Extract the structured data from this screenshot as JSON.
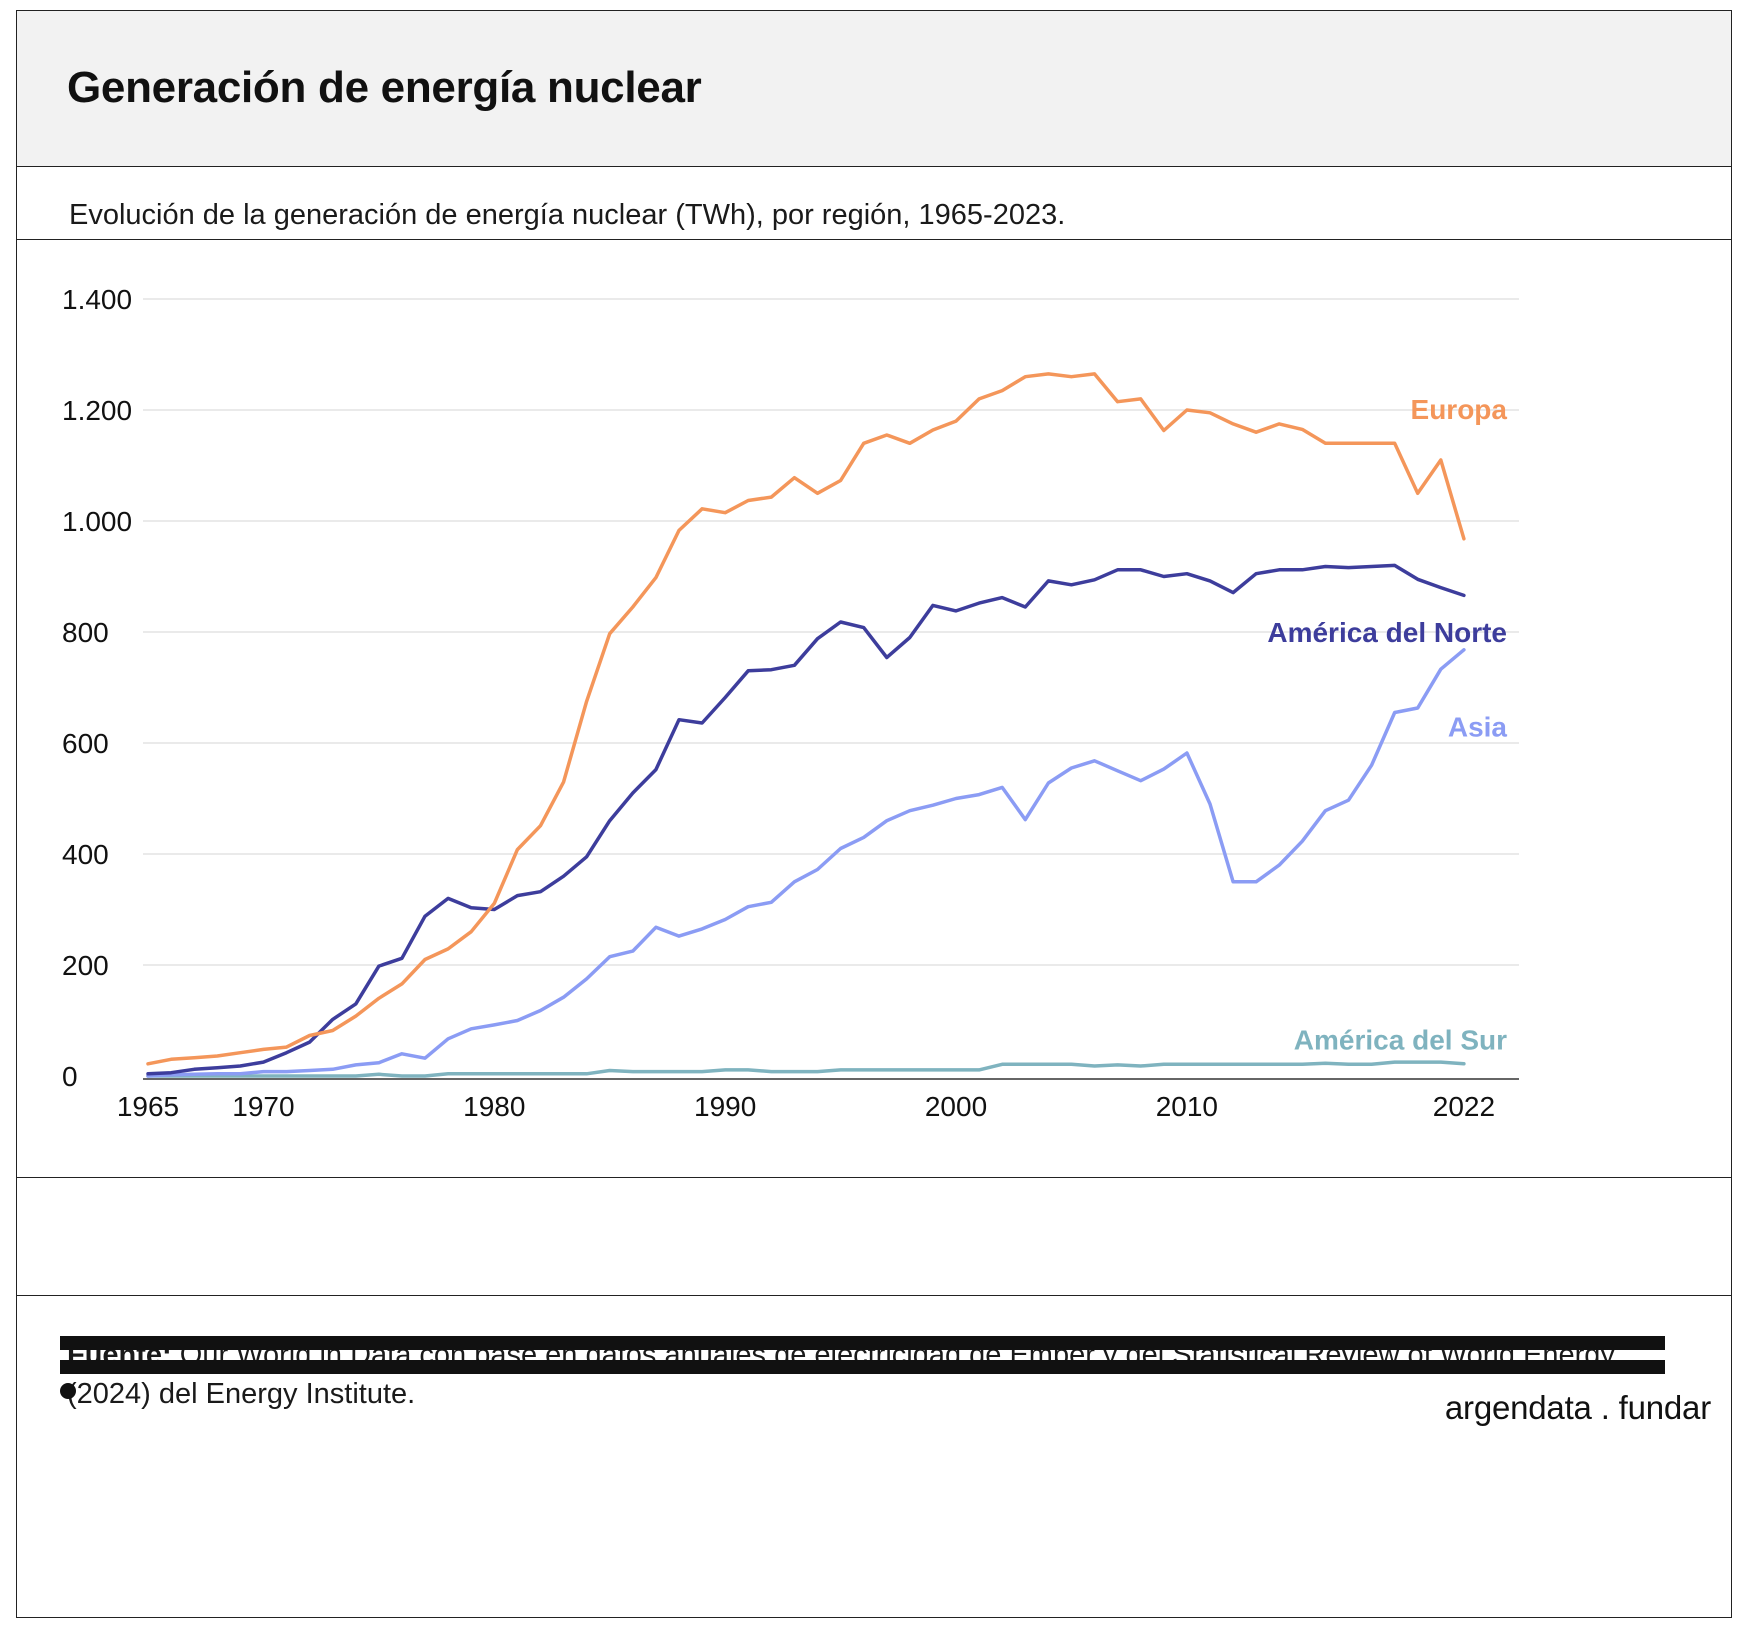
{
  "header": {
    "title": "Generación de energía nuclear",
    "subtitle": "Evolución de la generación de energía nuclear (TWh), por región, 1965-2023."
  },
  "footer": {
    "source_label": "Fuente:",
    "source_text": " Our World in Data con base en datos anuales de electricidad de Ember y del Statistical Review of World Energy (2024) del Energy Institute.",
    "logo_left": "argendata",
    "logo_dot": ".",
    "logo_right": "fundar"
  },
  "chart_data": {
    "type": "line",
    "title": "",
    "xlabel": "",
    "ylabel": "",
    "xlim": [
      1965,
      2023
    ],
    "ylim": [
      0,
      1400
    ],
    "x_ticks": [
      1965,
      1970,
      1980,
      1990,
      2000,
      2010,
      2022
    ],
    "y_ticks": [
      0,
      200,
      400,
      600,
      800,
      1000,
      1200,
      1400
    ],
    "y_tick_labels": [
      "0",
      "200",
      "400",
      "600",
      "800",
      "1.000",
      "1.200",
      "1.400"
    ],
    "grid": true,
    "legend": "inline-right",
    "x": [
      1965,
      1966,
      1967,
      1968,
      1969,
      1970,
      1971,
      1972,
      1973,
      1974,
      1975,
      1976,
      1977,
      1978,
      1979,
      1980,
      1981,
      1982,
      1983,
      1984,
      1985,
      1986,
      1987,
      1988,
      1989,
      1990,
      1991,
      1992,
      1993,
      1994,
      1995,
      1996,
      1997,
      1998,
      1999,
      2000,
      2001,
      2002,
      2003,
      2004,
      2005,
      2006,
      2007,
      2008,
      2009,
      2010,
      2011,
      2012,
      2013,
      2014,
      2015,
      2016,
      2017,
      2018,
      2019,
      2020,
      2021,
      2022,
      2023
    ],
    "series": [
      {
        "name": "Europa",
        "color": "#f4965a",
        "values": [
          22,
          30,
          33,
          36,
          42,
          48,
          52,
          73,
          82,
          108,
          140,
          166,
          210,
          229,
          260,
          311,
          408,
          451,
          530,
          675,
          797,
          845,
          898,
          983,
          1022,
          1015,
          1037,
          1043,
          1078,
          1050,
          1073,
          1140,
          1155,
          1140,
          1164,
          1180,
          1220,
          1235,
          1260,
          1265,
          1260,
          1265,
          1215,
          1220,
          1163,
          1200,
          1195,
          1175,
          1160,
          1175,
          1165,
          1140,
          1140,
          1140,
          1140,
          1050,
          1110,
          968,
          null
        ]
      },
      {
        "name": "América del Norte",
        "color": "#3d3d9c",
        "values": [
          4,
          6,
          12,
          15,
          18,
          25,
          42,
          61,
          102,
          130,
          198,
          212,
          288,
          320,
          303,
          300,
          325,
          332,
          360,
          395,
          460,
          510,
          552,
          642,
          636,
          682,
          730,
          732,
          740,
          788,
          818,
          808,
          754,
          790,
          848,
          838,
          852,
          862,
          845,
          892,
          885,
          894,
          912,
          912,
          900,
          905,
          892,
          871,
          905,
          912,
          912,
          918,
          916,
          918,
          920,
          895,
          880,
          866,
          null
        ]
      },
      {
        "name": "Asia",
        "color": "#8b9cf4",
        "values": [
          0,
          2,
          3,
          4,
          4,
          8,
          8,
          10,
          12,
          20,
          24,
          40,
          32,
          67,
          85,
          92,
          100,
          118,
          142,
          175,
          215,
          225,
          268,
          252,
          265,
          282,
          305,
          313,
          350,
          372,
          410,
          430,
          460,
          478,
          488,
          500,
          507,
          520,
          462,
          528,
          555,
          568,
          550,
          532,
          553,
          582,
          490,
          350,
          350,
          380,
          423,
          478,
          497,
          560,
          655,
          663,
          733,
          768,
          null
        ]
      },
      {
        "name": "América del Sur",
        "color": "#7fb3bf",
        "values": [
          0,
          0,
          0,
          0,
          0,
          0,
          0,
          0,
          0,
          0,
          3,
          0,
          0,
          4,
          4,
          4,
          4,
          4,
          4,
          4,
          10,
          8,
          8,
          8,
          8,
          11,
          11,
          8,
          8,
          8,
          11,
          11,
          11,
          11,
          11,
          11,
          11,
          21,
          21,
          21,
          21,
          18,
          20,
          18,
          21,
          21,
          21,
          21,
          21,
          21,
          21,
          23,
          21,
          21,
          25,
          25,
          25,
          22,
          null
        ]
      }
    ]
  }
}
